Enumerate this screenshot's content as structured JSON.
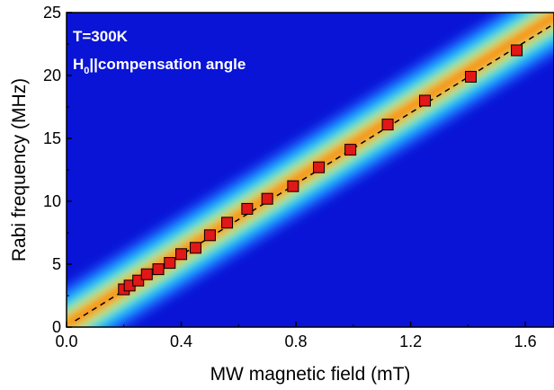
{
  "chart_data": {
    "type": "heatmap",
    "title": "",
    "xlabel": "MW magnetic field (mT)",
    "ylabel": "Rabi frequency (MHz)",
    "xlim": [
      0,
      1.7
    ],
    "ylim": [
      0,
      25
    ],
    "xticks": [
      0.0,
      0.4,
      0.8,
      1.2,
      1.6
    ],
    "xtick_labels": [
      "0.0",
      "0.4",
      "0.8",
      "1.2",
      "1.6"
    ],
    "yticks": [
      0,
      5,
      10,
      15,
      20,
      25
    ],
    "ytick_labels": [
      "0",
      "5",
      "10",
      "15",
      "20",
      "25"
    ],
    "grid": false,
    "annotations": {
      "line1": "T=300K",
      "line2_main": "H",
      "line2_sub": "0",
      "line2_rest": "||compensation angle"
    },
    "heatmap": {
      "background_color": "#0a14d6",
      "ridge": {
        "x": [
          0.0,
          1.7
        ],
        "y": [
          0.2,
          25.3
        ]
      },
      "colorscale": [
        "#0a14d6",
        "#1e64ff",
        "#1ec8ff",
        "#3cf0a0",
        "#c8f028",
        "#ffd200",
        "#ff5000"
      ]
    },
    "series": [
      {
        "type": "scatter",
        "color": "#e01818",
        "x": [
          0.2,
          0.22,
          0.25,
          0.28,
          0.32,
          0.36,
          0.4,
          0.45,
          0.5,
          0.56,
          0.63,
          0.7,
          0.79,
          0.88,
          0.99,
          1.12,
          1.25,
          1.41,
          1.57
        ],
        "y": [
          3.0,
          3.3,
          3.7,
          4.2,
          4.6,
          5.1,
          5.8,
          6.3,
          7.3,
          8.3,
          9.4,
          10.2,
          11.2,
          12.7,
          14.1,
          16.1,
          18.0,
          19.9,
          22.0
        ]
      },
      {
        "type": "line",
        "style": "dashed",
        "color": "#000000",
        "x": [
          0.03,
          1.7
        ],
        "y": [
          0.5,
          24.1
        ]
      }
    ]
  }
}
